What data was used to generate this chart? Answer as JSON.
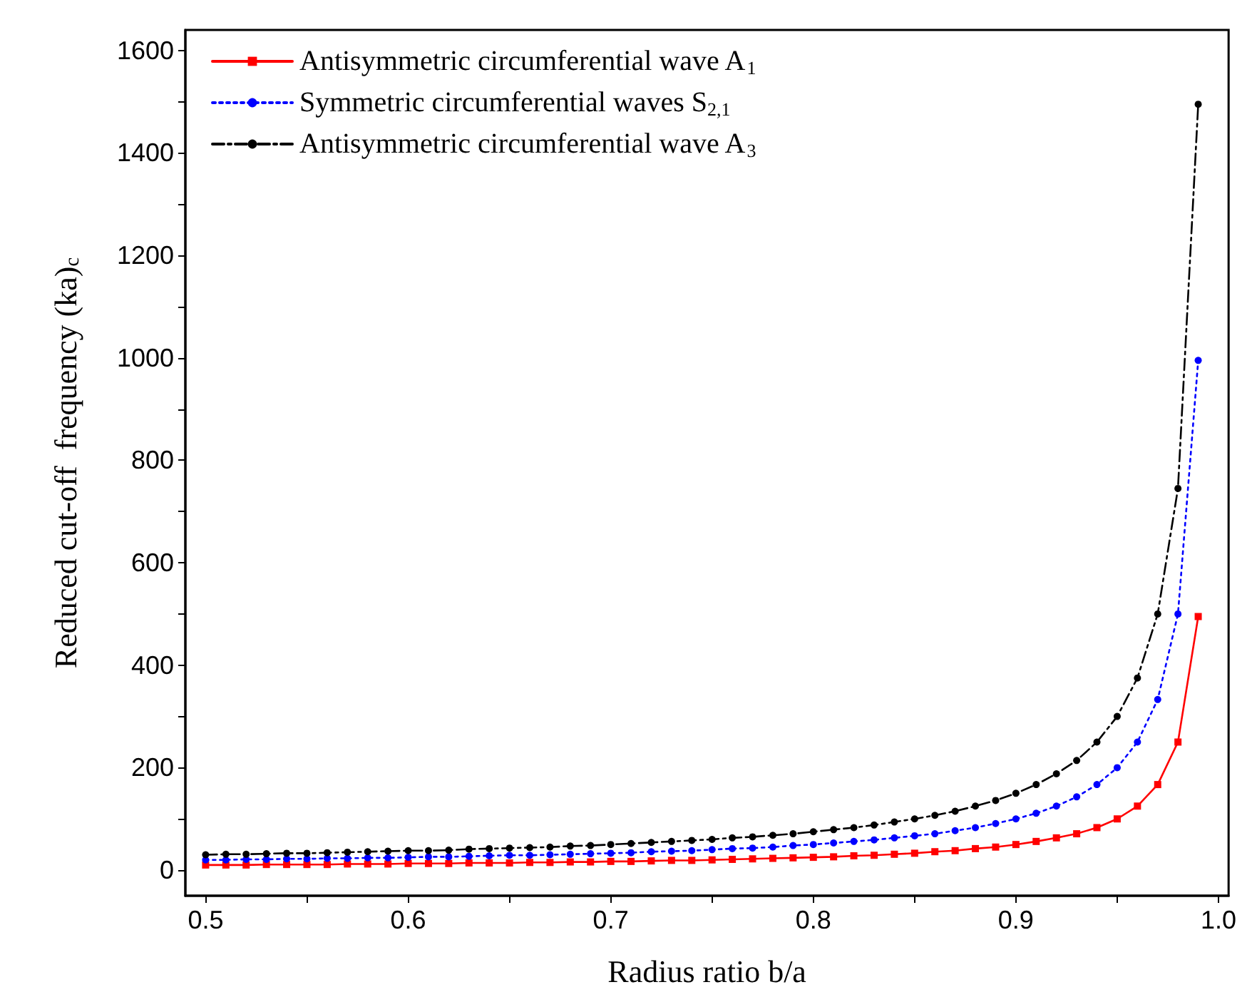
{
  "chart_data": {
    "type": "line",
    "xlabel": "Radius ratio b/a",
    "ylabel": "Reduced cut-off  frequency (ka)$_{c}$",
    "x": [
      0.5,
      0.51,
      0.52,
      0.53,
      0.54,
      0.55,
      0.56,
      0.57,
      0.58,
      0.59,
      0.6,
      0.61,
      0.62,
      0.63,
      0.64,
      0.65,
      0.66,
      0.67,
      0.68,
      0.69,
      0.7,
      0.71,
      0.72,
      0.73,
      0.74,
      0.75,
      0.76,
      0.77,
      0.78,
      0.79,
      0.8,
      0.81,
      0.82,
      0.83,
      0.84,
      0.85,
      0.86,
      0.87,
      0.88,
      0.89,
      0.9,
      0.91,
      0.92,
      0.93,
      0.94,
      0.95,
      0.96,
      0.97,
      0.98,
      0.99
    ],
    "series": [
      {
        "name": "Antisymmetric circumferential wave A$_{1}$",
        "color": "#ff0000",
        "marker": "square",
        "line_style": "solid",
        "values": [
          10,
          10,
          10,
          11,
          11,
          11,
          11,
          12,
          12,
          12,
          13,
          13,
          13,
          14,
          14,
          14,
          15,
          15,
          16,
          16,
          17,
          17,
          18,
          19,
          19,
          20,
          21,
          22,
          23,
          24,
          25,
          26,
          28,
          29,
          31,
          33,
          36,
          38,
          42,
          45,
          50,
          56,
          63,
          71,
          83,
          100,
          125,
          167,
          250,
          495
        ]
      },
      {
        "name": "Symmetric circumferential waves S$_{2,1}$",
        "color": "#0000ff",
        "marker": "circle",
        "line_style": "dotted",
        "values": [
          20,
          20,
          21,
          21,
          22,
          22,
          23,
          23,
          24,
          24,
          25,
          26,
          26,
          27,
          28,
          29,
          29,
          30,
          31,
          32,
          33,
          34,
          36,
          37,
          38,
          40,
          42,
          43,
          45,
          48,
          50,
          53,
          56,
          59,
          63,
          67,
          71,
          77,
          83,
          91,
          100,
          111,
          125,
          143,
          167,
          200,
          250,
          333,
          500,
          995
        ]
      },
      {
        "name": "Antisymmetric circumferential wave A$_{3}$",
        "color": "#000000",
        "marker": "circle",
        "line_style": "dashed",
        "values": [
          30,
          31,
          31,
          32,
          33,
          33,
          34,
          35,
          36,
          37,
          38,
          38,
          39,
          41,
          42,
          43,
          44,
          45,
          47,
          48,
          50,
          52,
          54,
          56,
          58,
          60,
          63,
          65,
          68,
          71,
          75,
          79,
          83,
          88,
          94,
          100,
          107,
          115,
          125,
          136,
          150,
          167,
          188,
          214,
          250,
          300,
          375,
          500,
          745,
          1495
        ]
      }
    ],
    "xlim": [
      0.49,
      1.005
    ],
    "ylim": [
      -50,
      1640
    ],
    "xticks": [
      0.5,
      {
        "value": 0.55,
        "label": null
      },
      0.6,
      {
        "value": 0.65,
        "label": null
      },
      0.7,
      {
        "value": 0.75,
        "label": null
      },
      0.8,
      {
        "value": 0.85,
        "label": null
      },
      0.9,
      {
        "value": 0.95,
        "label": null
      },
      {
        "value": 1,
        "label": "1.0"
      }
    ],
    "yticks": [
      0,
      {
        "value": 100,
        "label": null
      },
      200,
      {
        "value": 300,
        "label": null
      },
      400,
      {
        "value": 500,
        "label": null
      },
      600,
      {
        "value": 700,
        "label": null
      },
      800,
      {
        "value": 900,
        "label": null
      },
      1000,
      {
        "value": 1100,
        "label": null
      },
      1200,
      {
        "value": 1300,
        "label": null
      },
      1400,
      {
        "value": 1500,
        "label": null
      },
      1600
    ],
    "grid": false,
    "legend": "top left"
  }
}
